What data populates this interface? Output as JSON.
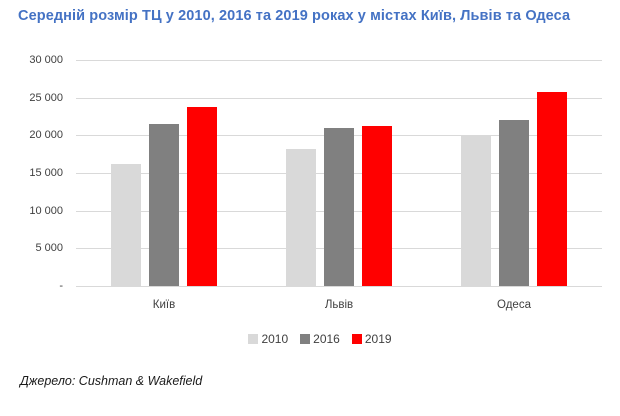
{
  "title": "Середній розмір ТЦ у 2010, 2016 та 2019 роках у містах Київ, Львів та Одеса",
  "source": "Джерело: Cushman & Wakefield",
  "colors": {
    "title": "#4472c4",
    "axis_text": "#404040",
    "gridline": "#d9d9d9",
    "source_text": "#1a1a1a"
  },
  "chart_data": {
    "type": "bar",
    "title": "Середній розмір ТЦ у 2010, 2016 та 2019 роках у містах Київ, Львів та Одеса",
    "categories": [
      "Київ",
      "Львів",
      "Одеса"
    ],
    "series": [
      {
        "name": "2010",
        "color": "#d9d9d9",
        "values": [
          16200,
          18200,
          20000
        ]
      },
      {
        "name": "2016",
        "color": "#808080",
        "values": [
          21500,
          21000,
          22000
        ]
      },
      {
        "name": "2019",
        "color": "#ff0000",
        "values": [
          23800,
          21200,
          25700
        ]
      }
    ],
    "xlabel": "",
    "ylabel": "",
    "ylim": [
      0,
      30000
    ],
    "ytick_step": 5000,
    "ytick_labels": [
      "-",
      "5 000",
      "10 000",
      "15 000",
      "20 000",
      "25 000",
      "30 000"
    ],
    "grid": true,
    "legend_position": "bottom"
  }
}
